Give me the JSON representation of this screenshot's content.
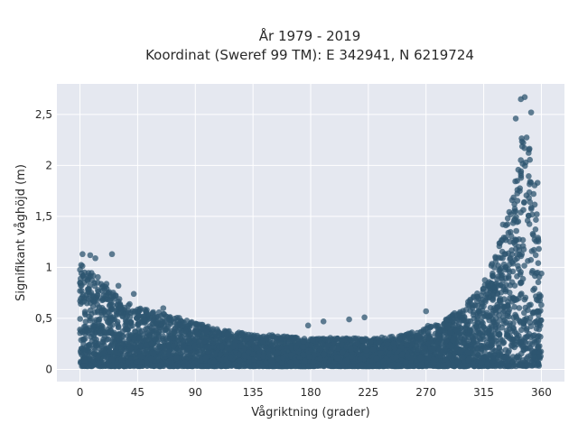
{
  "chart_data": {
    "type": "scatter",
    "title_lines": [
      "År 1979 - 2019",
      "Koordinat (Sweref 99 TM): E 342941, N 6219724"
    ],
    "xlabel": "Vågriktning (grader)",
    "ylabel": "Signifikant våghöjd (m)",
    "xlim": [
      -18,
      378
    ],
    "ylim": [
      -0.12,
      2.8
    ],
    "xticks": [
      0,
      45,
      90,
      135,
      180,
      225,
      270,
      315,
      360
    ],
    "xtick_labels": [
      "0",
      "45",
      "90",
      "135",
      "180",
      "225",
      "270",
      "315",
      "360"
    ],
    "yticks": [
      0,
      0.5,
      1,
      1.5,
      2,
      2.5
    ],
    "ytick_labels": [
      "0",
      "0,5",
      "1",
      "1,5",
      "2",
      "2,5"
    ],
    "grid": true,
    "legend": "none",
    "marker_color": "#2e5570",
    "plot_background": "#e5e8f0",
    "envelope": {
      "direction_deg": [
        0,
        5,
        10,
        20,
        30,
        45,
        60,
        75,
        90,
        105,
        120,
        135,
        150,
        165,
        180,
        195,
        210,
        225,
        240,
        255,
        270,
        285,
        300,
        315,
        325,
        335,
        340,
        345,
        350,
        355,
        360
      ],
      "max_height_m": [
        1.12,
        1.0,
        0.95,
        0.85,
        0.7,
        0.6,
        0.57,
        0.52,
        0.46,
        0.4,
        0.37,
        0.35,
        0.34,
        0.32,
        0.3,
        0.31,
        0.31,
        0.3,
        0.32,
        0.35,
        0.42,
        0.5,
        0.62,
        0.85,
        1.15,
        1.55,
        1.95,
        2.4,
        2.3,
        1.8,
        0.95
      ],
      "min_height_m": 0.03
    },
    "outliers": [
      {
        "x": 2,
        "y": 1.13
      },
      {
        "x": 8,
        "y": 1.12
      },
      {
        "x": 12,
        "y": 1.09
      },
      {
        "x": 25,
        "y": 1.13
      },
      {
        "x": 30,
        "y": 0.82
      },
      {
        "x": 42,
        "y": 0.74
      },
      {
        "x": 65,
        "y": 0.6
      },
      {
        "x": 100,
        "y": 0.42
      },
      {
        "x": 178,
        "y": 0.43
      },
      {
        "x": 190,
        "y": 0.47
      },
      {
        "x": 210,
        "y": 0.49
      },
      {
        "x": 222,
        "y": 0.51
      },
      {
        "x": 270,
        "y": 0.57
      },
      {
        "x": 330,
        "y": 1.42
      },
      {
        "x": 340,
        "y": 2.46
      },
      {
        "x": 344,
        "y": 2.65
      },
      {
        "x": 347,
        "y": 2.67
      },
      {
        "x": 352,
        "y": 2.52
      },
      {
        "x": 357,
        "y": 1.83
      }
    ]
  }
}
